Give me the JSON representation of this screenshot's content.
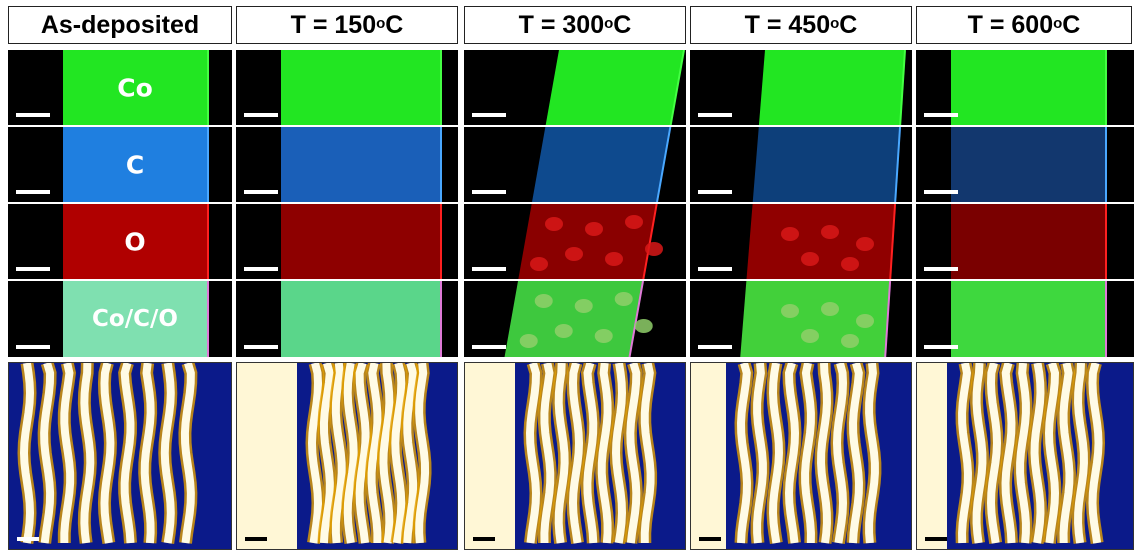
{
  "columns": [
    {
      "label": "As-deposited",
      "temperature": null
    },
    {
      "label": "T = 150 ",
      "deg": "o",
      "unit": "C"
    },
    {
      "label": "T = 300 ",
      "deg": "o",
      "unit": "C"
    },
    {
      "label": "T = 450 ",
      "deg": "o",
      "unit": "C"
    },
    {
      "label": "T = 600 ",
      "deg": "o",
      "unit": "C"
    }
  ],
  "rows": [
    {
      "element": "Co",
      "color": "#22e622"
    },
    {
      "element": "C",
      "color": "#1f7fe0"
    },
    {
      "element": "O",
      "color": "#b00000"
    },
    {
      "element": "Co/C/O",
      "color": "#7fe0b0"
    },
    {
      "element": "",
      "color": "holography-phase"
    }
  ],
  "row_labels_shown_in_first_column": [
    "Co",
    "C",
    "O",
    "Co/C/O"
  ],
  "colors": {
    "background": "#000000",
    "fringe_bright": "#fffbe6",
    "fringe_dark": "#0a0a66",
    "border": "#dddddd"
  }
}
